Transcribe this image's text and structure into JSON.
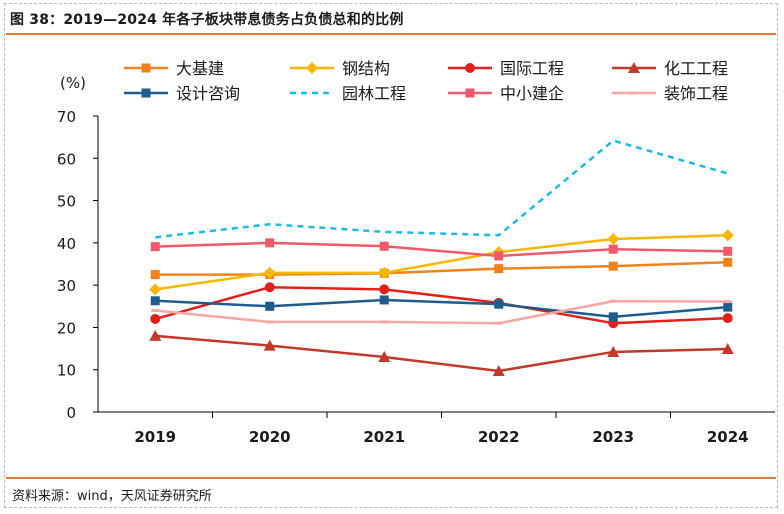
{
  "figure": {
    "title": "图 38：2019—2024 年各子板块带息债务占负债总和的比例",
    "source": "资料来源：wind，天风证券研究所"
  },
  "colors": {
    "accent": "#e07b39"
  },
  "chart_data": {
    "type": "line",
    "ylabel": "(%)",
    "ylim": [
      0,
      70
    ],
    "yticks": [
      0,
      10,
      20,
      30,
      40,
      50,
      60,
      70
    ],
    "categories": [
      "2019",
      "2020",
      "2021",
      "2022",
      "2023",
      "2024"
    ],
    "grid": false,
    "legend_position": "top",
    "series": [
      {
        "name": "大基建",
        "color": "#f0821e",
        "marker": "square",
        "dash": false,
        "values": [
          32.5,
          32.5,
          32.8,
          33.9,
          34.5,
          35.4
        ]
      },
      {
        "name": "钢结构",
        "color": "#f5b700",
        "marker": "diamond",
        "dash": false,
        "values": [
          29.0,
          32.9,
          32.9,
          37.8,
          40.9,
          41.8
        ]
      },
      {
        "name": "国际工程",
        "color": "#e0211b",
        "marker": "circle",
        "dash": false,
        "values": [
          22.0,
          29.5,
          29.0,
          25.8,
          21.0,
          22.2
        ]
      },
      {
        "name": "化工工程",
        "color": "#c0392b",
        "marker": "triangle",
        "dash": false,
        "values": [
          18.0,
          15.7,
          13.0,
          9.7,
          14.2,
          14.9
        ]
      },
      {
        "name": "设计咨询",
        "color": "#1f5b8c",
        "marker": "square",
        "dash": false,
        "values": [
          26.3,
          25.0,
          26.5,
          25.5,
          22.5,
          24.8
        ]
      },
      {
        "name": "园林工程",
        "color": "#1fb8e8",
        "marker": "none",
        "dash": true,
        "values": [
          41.3,
          44.4,
          42.6,
          41.8,
          64.2,
          56.4
        ]
      },
      {
        "name": "中小建企",
        "color": "#ef5a6a",
        "marker": "square",
        "dash": false,
        "values": [
          39.1,
          40.0,
          39.2,
          36.9,
          38.5,
          38.0
        ]
      },
      {
        "name": "装饰工程",
        "color": "#f7a6a3",
        "marker": "dash",
        "dash": false,
        "values": [
          24.0,
          21.3,
          21.3,
          21.0,
          26.2,
          26.1
        ]
      }
    ]
  }
}
